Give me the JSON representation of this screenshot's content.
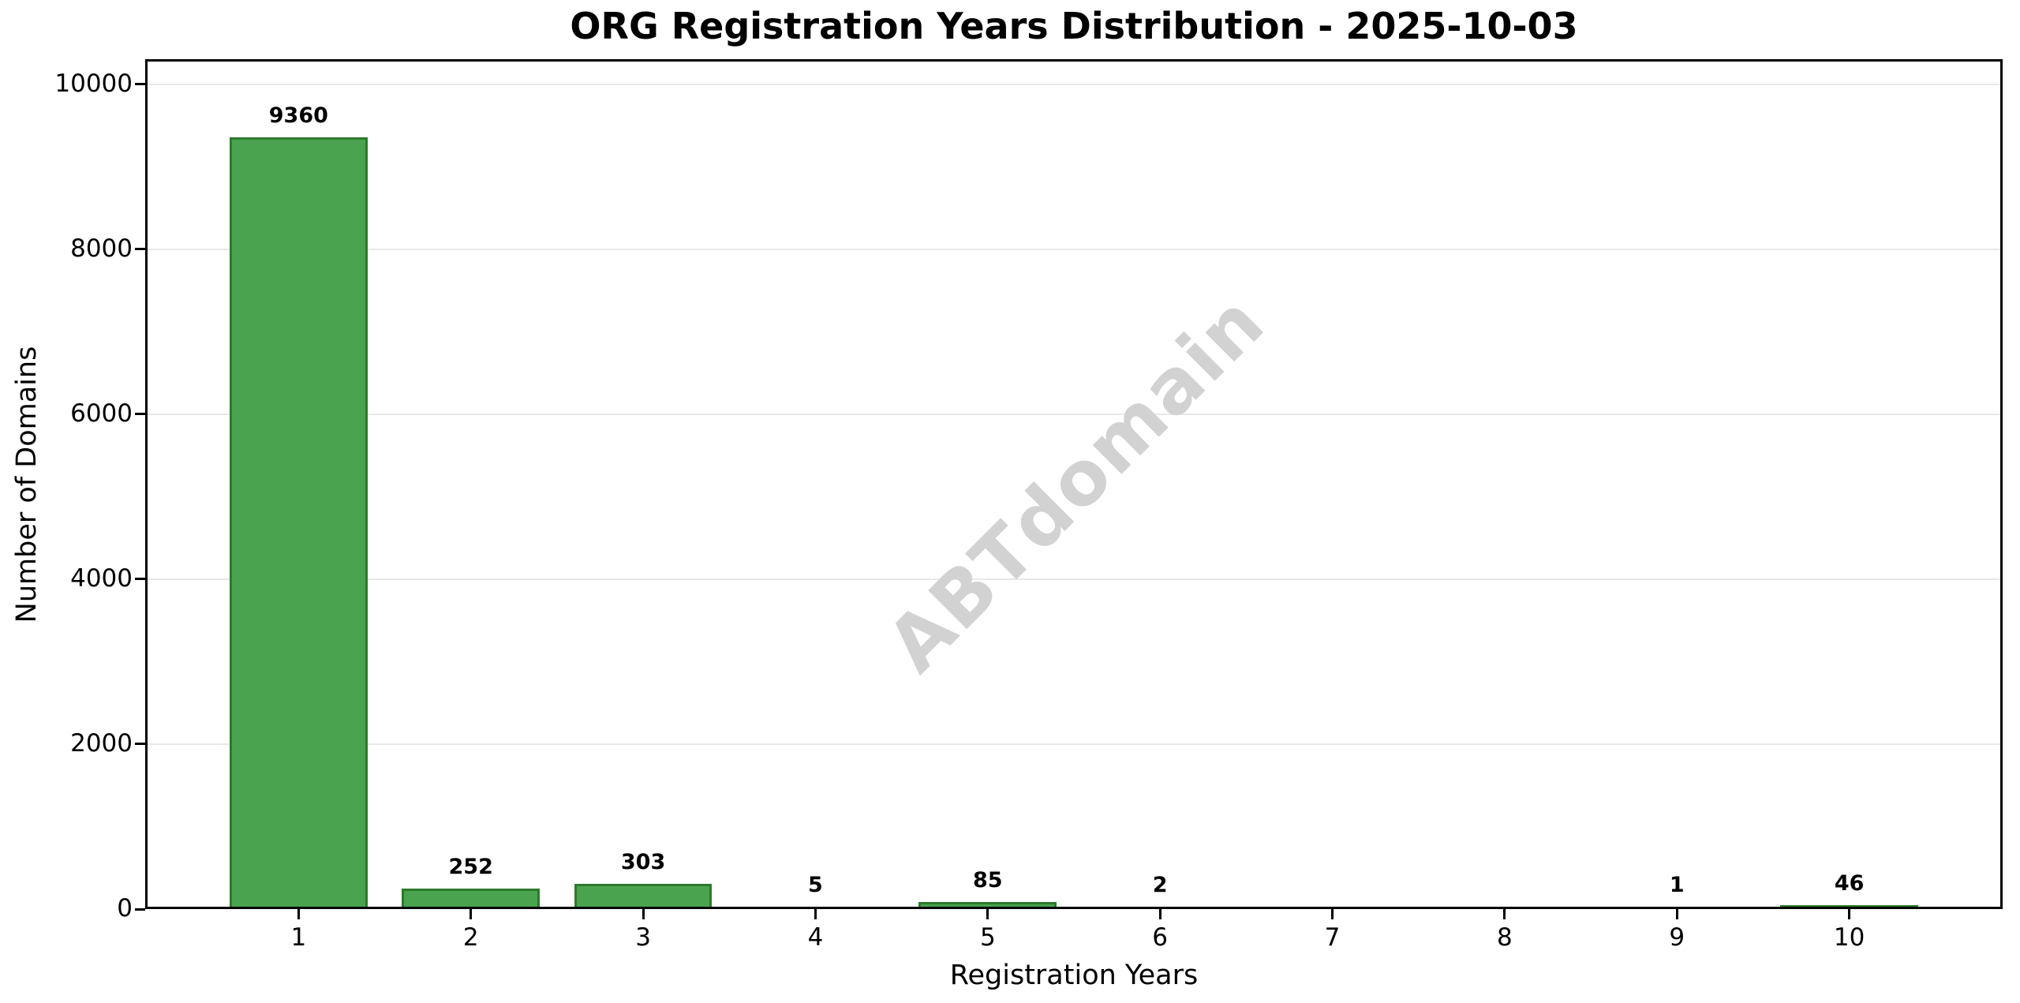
{
  "title": "ORG Registration Years Distribution - 2025-10-03",
  "watermark_text": "ABTdomain",
  "colors": {
    "bar_fill": "#4aa34e",
    "bar_edge": "#2d7a2d",
    "gridline": "#e8e8e8",
    "spine": "#000000",
    "background": "#ffffff",
    "watermark": "#d2d2d2",
    "text": "#000000"
  },
  "chart_data": {
    "type": "bar",
    "title": "ORG Registration Years Distribution - 2025-10-03",
    "xlabel": "Registration Years",
    "ylabel": "Number of Domains",
    "categories": [
      "1",
      "2",
      "3",
      "4",
      "5",
      "6",
      "7",
      "8",
      "9",
      "10"
    ],
    "values": [
      9360,
      252,
      303,
      5,
      85,
      2,
      0,
      0,
      1,
      46
    ],
    "bar_labels": [
      "9360",
      "252",
      "303",
      "5",
      "85",
      "2",
      "",
      "",
      "1",
      "46"
    ],
    "yticks": [
      0,
      2000,
      4000,
      6000,
      8000,
      10000
    ],
    "ytick_labels": [
      "0",
      "2000",
      "4000",
      "6000",
      "8000",
      "10000"
    ],
    "ylim": [
      0,
      10306
    ],
    "xlim": [
      0.11,
      10.89
    ],
    "bar_width": 0.8,
    "grid": "horizontal-only",
    "legend": "none",
    "watermark": "ABTdomain"
  }
}
